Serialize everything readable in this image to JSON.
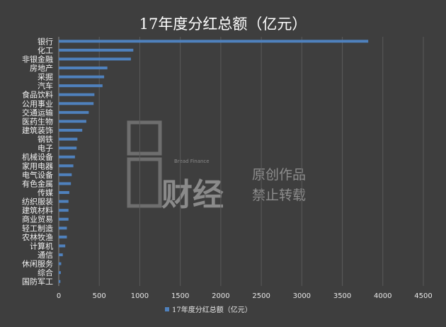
{
  "title": "17年度分红总额（亿元）",
  "legend_label": "17年度分红总额（亿元）",
  "watermark": {
    "brand_en": "Bread Finance",
    "brand_cn": "财经",
    "line1": "原创作品",
    "line2": "禁止转载"
  },
  "colors": {
    "background": "#3e3e3e",
    "bar": "#4f81bd",
    "grid": "#5a5a5a"
  },
  "chart_data": {
    "type": "bar",
    "orientation": "horizontal",
    "title": "17年度分红总额（亿元）",
    "categories": [
      "银行",
      "化工",
      "非银金融",
      "房地产",
      "采掘",
      "汽车",
      "食品饮料",
      "公用事业",
      "交通运输",
      "医药生物",
      "建筑装饰",
      "钢铁",
      "电子",
      "机械设备",
      "家用电器",
      "电气设备",
      "有色金属",
      "传媒",
      "纺织服装",
      "建筑材料",
      "商业贸易",
      "轻工制造",
      "农林牧渔",
      "计算机",
      "通信",
      "休闲服务",
      "综合",
      "国防军工"
    ],
    "series": [
      {
        "name": "17年度分红总额（亿元）",
        "values": [
          3820,
          920,
          890,
          600,
          560,
          540,
          440,
          430,
          370,
          340,
          290,
          230,
          220,
          200,
          180,
          160,
          150,
          130,
          120,
          120,
          120,
          100,
          100,
          80,
          50,
          30,
          25,
          20
        ]
      }
    ],
    "xlim": [
      0,
      4500
    ],
    "xticks": [
      0,
      500,
      1000,
      1500,
      2000,
      2500,
      3000,
      3500,
      4000,
      4500
    ],
    "grid": true,
    "legend_position": "bottom"
  }
}
